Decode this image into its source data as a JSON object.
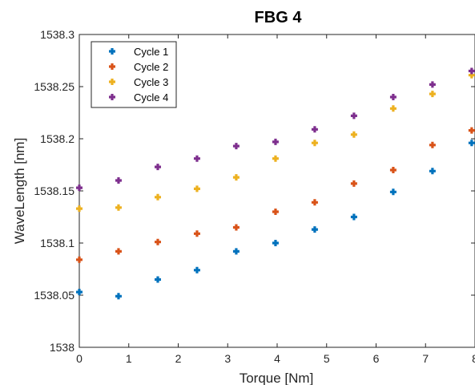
{
  "chart_data": {
    "type": "scatter",
    "title": "FBG 4",
    "xlabel": "Torque [Nm]",
    "ylabel": "WaveLength [nm]",
    "xlim": [
      0,
      8
    ],
    "ylim": [
      1538,
      1538.3
    ],
    "x_ticks": [
      "0",
      "1",
      "2",
      "3",
      "4",
      "5",
      "6",
      "7",
      "8"
    ],
    "y_ticks": [
      "1538",
      "1538.05",
      "1538.1",
      "1538.15",
      "1538.2",
      "1538.25",
      "1538.3"
    ],
    "grid": false,
    "legend_position": "top-left",
    "x": [
      0,
      0.793,
      1.587,
      2.38,
      3.173,
      3.967,
      4.76,
      5.553,
      6.347,
      7.14,
      7.933
    ],
    "series": [
      {
        "name": "Cycle 1",
        "color": "#0072BD",
        "values": [
          1538.053,
          1538.049,
          1538.065,
          1538.074,
          1538.092,
          1538.1,
          1538.113,
          1538.125,
          1538.149,
          1538.169,
          1538.196
        ]
      },
      {
        "name": "Cycle 2",
        "color": "#D95319",
        "values": [
          1538.084,
          1538.092,
          1538.101,
          1538.109,
          1538.115,
          1538.13,
          1538.139,
          1538.157,
          1538.17,
          1538.194,
          1538.208
        ]
      },
      {
        "name": "Cycle 3",
        "color": "#EDB120",
        "values": [
          1538.133,
          1538.134,
          1538.144,
          1538.152,
          1538.163,
          1538.181,
          1538.196,
          1538.204,
          1538.229,
          1538.243,
          1538.261
        ]
      },
      {
        "name": "Cycle 4",
        "color": "#7E2F8E",
        "values": [
          1538.153,
          1538.16,
          1538.173,
          1538.181,
          1538.193,
          1538.197,
          1538.209,
          1538.222,
          1538.24,
          1538.252,
          1538.265
        ]
      }
    ]
  }
}
